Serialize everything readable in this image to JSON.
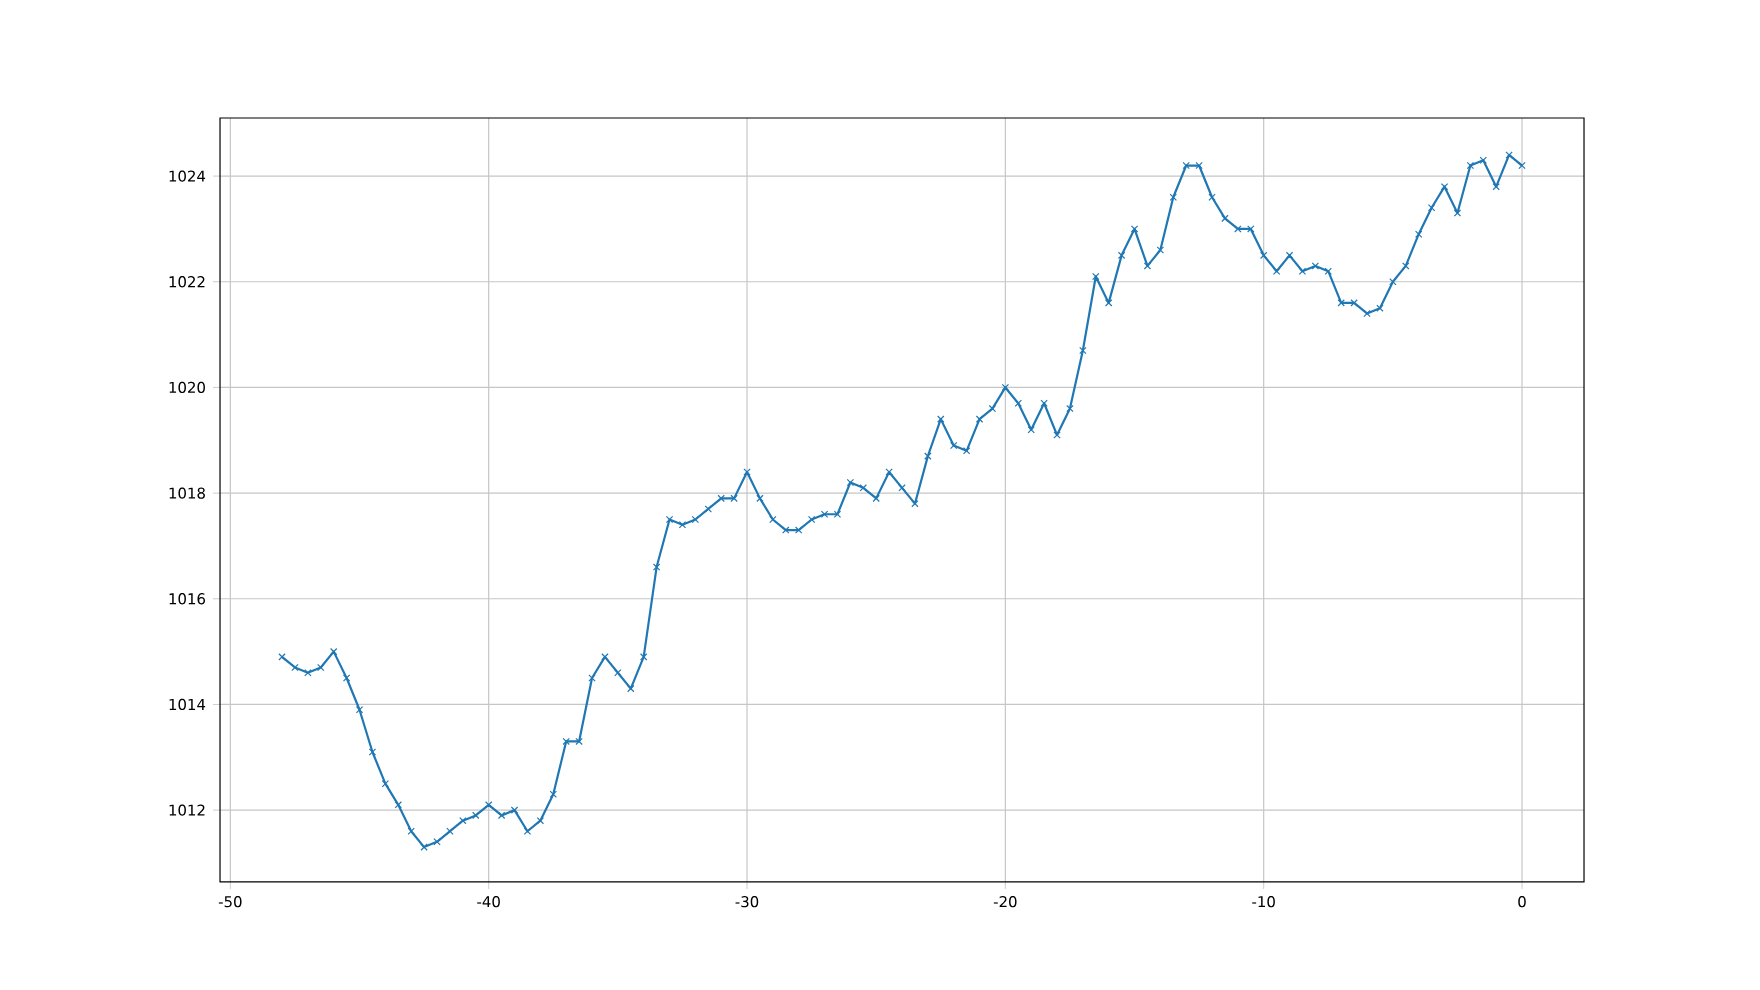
{
  "chart_data": {
    "type": "line",
    "x": [
      -48,
      -47.5,
      -47,
      -46.5,
      -46,
      -45.5,
      -45,
      -44.5,
      -44,
      -43.5,
      -43,
      -42.5,
      -42,
      -41.5,
      -41,
      -40.5,
      -40,
      -39.5,
      -39,
      -38.5,
      -38,
      -37.5,
      -37,
      -36.5,
      -36,
      -35.5,
      -35,
      -34.5,
      -34,
      -33.5,
      -33,
      -32.5,
      -32,
      -31.5,
      -31,
      -30.5,
      -30,
      -29.5,
      -29,
      -28.5,
      -28,
      -27.5,
      -27,
      -26.5,
      -26,
      -25.5,
      -25,
      -24.5,
      -24,
      -23.5,
      -23,
      -22.5,
      -22,
      -21.5,
      -21,
      -20.5,
      -20,
      -19.5,
      -19,
      -18.5,
      -18,
      -17.5,
      -17,
      -16.5,
      -16,
      -15.5,
      -15,
      -14.5,
      -14,
      -13.5,
      -13,
      -12.5,
      -12,
      -11.5,
      -11,
      -10.5,
      -10,
      -9.5,
      -9,
      -8.5,
      -8,
      -7.5,
      -7,
      -6.5,
      -6,
      -5.5,
      -5,
      -4.5,
      -4,
      -3.5,
      -3,
      -2.5,
      -2,
      -1.5,
      -1,
      -0.5,
      0
    ],
    "series": [
      {
        "color": "#1f77b4",
        "values": [
          1014.9,
          1014.7,
          1014.6,
          1014.7,
          1015.0,
          1014.5,
          1013.9,
          1013.1,
          1012.5,
          1012.1,
          1011.6,
          1011.3,
          1011.4,
          1011.6,
          1011.8,
          1011.9,
          1012.1,
          1011.9,
          1012.0,
          1011.6,
          1011.8,
          1012.3,
          1013.3,
          1013.3,
          1014.5,
          1014.9,
          1014.6,
          1014.3,
          1014.9,
          1016.6,
          1017.5,
          1017.4,
          1017.5,
          1017.7,
          1017.9,
          1017.9,
          1018.4,
          1017.9,
          1017.5,
          1017.3,
          1017.3,
          1017.5,
          1017.6,
          1017.6,
          1018.2,
          1018.1,
          1017.9,
          1018.4,
          1018.1,
          1017.8,
          1018.7,
          1019.4,
          1018.9,
          1018.8,
          1019.4,
          1019.6,
          1020.0,
          1019.7,
          1019.2,
          1019.7,
          1019.1,
          1019.6,
          1020.7,
          1022.1,
          1021.6,
          1022.5,
          1023.0,
          1022.3,
          1022.6,
          1023.6,
          1024.2,
          1024.2,
          1023.6,
          1023.2,
          1023.0,
          1023.0,
          1022.5,
          1022.2,
          1022.5,
          1022.2,
          1022.3,
          1022.2,
          1021.6,
          1021.6,
          1021.4,
          1021.5,
          1022.0,
          1022.3,
          1022.9,
          1023.4,
          1023.8,
          1023.3,
          1024.2,
          1024.3,
          1023.8,
          1024.4,
          1024.2
        ]
      }
    ],
    "xlim": [
      -50.4,
      2.4
    ],
    "ylim": [
      1010.64,
      1025.1
    ],
    "xticks": [
      -50,
      -40,
      -30,
      -20,
      -10,
      0
    ],
    "yticks": [
      1012,
      1014,
      1016,
      1018,
      1020,
      1022,
      1024
    ],
    "grid": true,
    "marker": "cross",
    "line_style": "solid"
  }
}
